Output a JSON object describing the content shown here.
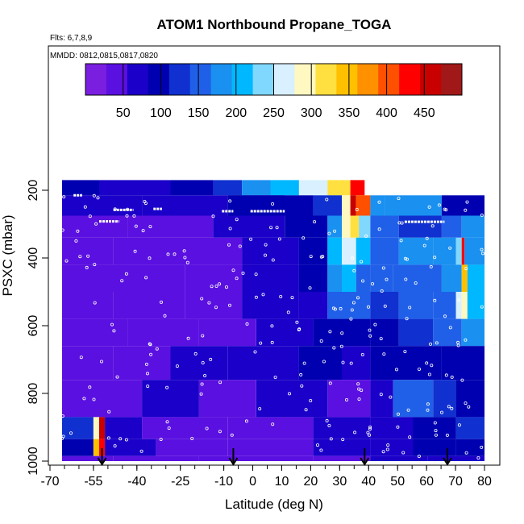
{
  "chart_data": {
    "type": "heatmap",
    "title": "ATOM1 Northbound Propane_TOGA",
    "flights_label": "Flts: 6,7,8,9",
    "dates_label": "MMDD: 0812,0815,0817,0820",
    "xlabel": "Latitude (deg N)",
    "ylabel": "PSXC (mbar)",
    "xlim": [
      -70,
      80
    ],
    "ylim": [
      1000,
      150
    ],
    "y_reversed": true,
    "x_ticks": [
      "-70",
      "-55",
      "-40",
      "-25",
      "-10",
      "0",
      "10",
      "20",
      "30",
      "40",
      "50",
      "60",
      "70",
      "80"
    ],
    "x_tick_values": [
      -70,
      -55,
      -40,
      -25,
      -10,
      0,
      10,
      20,
      30,
      40,
      50,
      60,
      70,
      80
    ],
    "y_ticks": [
      "200",
      "400",
      "600",
      "800",
      "1000"
    ],
    "y_tick_values": [
      200,
      400,
      600,
      800,
      1000
    ],
    "colorbar": {
      "range": [
        0,
        500
      ],
      "tick_labels": [
        "50",
        "100",
        "150",
        "200",
        "250",
        "300",
        "350",
        "400",
        "450"
      ],
      "tick_values": [
        50,
        100,
        150,
        200,
        250,
        300,
        350,
        400,
        450
      ],
      "colors": [
        "#7a1fe0",
        "#5a10e0",
        "#1a00c8",
        "#0000b0",
        "#1030d0",
        "#2060e8",
        "#1a90f0",
        "#00b8ff",
        "#80d8ff",
        "#d8f0ff",
        "#fff8c0",
        "#ffe040",
        "#ffc000",
        "#ff9000",
        "#ff5000",
        "#ff0000",
        "#c80000",
        "#a01818"
      ]
    },
    "bin_layers": [
      {
        "p_range": [
          170,
          215
        ],
        "lat_range": [
          -68,
          33
        ],
        "segments": [
          [
            -68,
            -55,
            100
          ],
          [
            -55,
            -30,
            60
          ],
          [
            -30,
            -15,
            90
          ],
          [
            -15,
            -5,
            130
          ],
          [
            -5,
            5,
            170
          ],
          [
            5,
            15,
            220
          ],
          [
            15,
            25,
            270
          ],
          [
            25,
            33,
            320
          ]
        ]
      },
      {
        "p_range": [
          170,
          215
        ],
        "lat_range": [
          33,
          38
        ],
        "segments": [
          [
            33,
            38,
            440
          ]
        ]
      },
      {
        "p_range": [
          215,
          275
        ],
        "lat_range": [
          -68,
          80
        ],
        "segments": [
          [
            -68,
            -40,
            60
          ],
          [
            -40,
            -10,
            75
          ],
          [
            -10,
            10,
            90
          ],
          [
            -10,
            20,
            110
          ],
          [
            20,
            30,
            130
          ],
          [
            30,
            33,
            300
          ],
          [
            33,
            35,
            460
          ],
          [
            35,
            40,
            400
          ],
          [
            40,
            45,
            170
          ],
          [
            45,
            65,
            170
          ],
          [
            65,
            80,
            100
          ]
        ]
      },
      {
        "p_range": [
          275,
          340
        ],
        "lat_range": [
          -68,
          80
        ],
        "segments": [
          [
            -68,
            -45,
            50
          ],
          [
            -45,
            -15,
            40
          ],
          [
            -15,
            10,
            80
          ],
          [
            10,
            25,
            90
          ],
          [
            25,
            30,
            170
          ],
          [
            30,
            33,
            300
          ],
          [
            33,
            36,
            320
          ],
          [
            36,
            40,
            230
          ],
          [
            40,
            50,
            150
          ],
          [
            50,
            65,
            130
          ],
          [
            65,
            72,
            150
          ],
          [
            72,
            80,
            180
          ]
        ]
      },
      {
        "p_range": [
          340,
          420
        ],
        "lat_range": [
          -68,
          80
        ],
        "segments": [
          [
            -68,
            -50,
            40
          ],
          [
            -50,
            -30,
            50
          ],
          [
            -30,
            -5,
            40
          ],
          [
            -5,
            15,
            60
          ],
          [
            15,
            25,
            90
          ],
          [
            25,
            30,
            200
          ],
          [
            30,
            35,
            260
          ],
          [
            35,
            40,
            200
          ],
          [
            40,
            50,
            150
          ],
          [
            50,
            62,
            170
          ],
          [
            62,
            70,
            170
          ],
          [
            70,
            72,
            240
          ],
          [
            72,
            73,
            420
          ],
          [
            73,
            80,
            190
          ]
        ]
      },
      {
        "p_range": [
          420,
          500
        ],
        "lat_range": [
          -68,
          80
        ],
        "segments": [
          [
            -68,
            -55,
            50
          ],
          [
            -55,
            -25,
            30
          ],
          [
            -25,
            -5,
            45
          ],
          [
            -5,
            15,
            70
          ],
          [
            15,
            25,
            90
          ],
          [
            25,
            30,
            170
          ],
          [
            30,
            35,
            200
          ],
          [
            35,
            40,
            160
          ],
          [
            40,
            48,
            140
          ],
          [
            48,
            65,
            150
          ],
          [
            65,
            72,
            170
          ],
          [
            72,
            74,
            350
          ],
          [
            74,
            80,
            200
          ]
        ]
      },
      {
        "p_range": [
          500,
          580
        ],
        "lat_range": [
          -68,
          80
        ],
        "segments": [
          [
            -68,
            -50,
            40
          ],
          [
            -50,
            -25,
            30
          ],
          [
            -25,
            -5,
            40
          ],
          [
            -5,
            15,
            60
          ],
          [
            15,
            25,
            80
          ],
          [
            25,
            30,
            160
          ],
          [
            30,
            40,
            140
          ],
          [
            40,
            50,
            120
          ],
          [
            50,
            62,
            140
          ],
          [
            62,
            70,
            160
          ],
          [
            70,
            72,
            250
          ],
          [
            72,
            74,
            300
          ],
          [
            74,
            80,
            200
          ]
        ]
      },
      {
        "p_range": [
          580,
          660
        ],
        "lat_range": [
          -68,
          80
        ],
        "segments": [
          [
            -68,
            -45,
            30
          ],
          [
            -45,
            -20,
            40
          ],
          [
            -20,
            0,
            50
          ],
          [
            0,
            20,
            70
          ],
          [
            20,
            30,
            100
          ],
          [
            30,
            40,
            110
          ],
          [
            40,
            50,
            100
          ],
          [
            50,
            62,
            120
          ],
          [
            62,
            72,
            150
          ],
          [
            72,
            80,
            170
          ]
        ]
      },
      {
        "p_range": [
          660,
          760
        ],
        "lat_range": [
          -68,
          80
        ],
        "segments": [
          [
            -68,
            -50,
            40
          ],
          [
            -50,
            -30,
            50
          ],
          [
            -30,
            -10,
            60
          ],
          [
            -10,
            15,
            70
          ],
          [
            15,
            30,
            90
          ],
          [
            30,
            40,
            80
          ],
          [
            40,
            55,
            90
          ],
          [
            55,
            65,
            100
          ],
          [
            65,
            80,
            110
          ]
        ]
      },
      {
        "p_range": [
          760,
          870
        ],
        "lat_range": [
          -68,
          80
        ],
        "segments": [
          [
            -68,
            -55,
            50
          ],
          [
            -55,
            -40,
            40
          ],
          [
            -40,
            -20,
            60
          ],
          [
            -20,
            0,
            50
          ],
          [
            0,
            25,
            60
          ],
          [
            25,
            40,
            50
          ],
          [
            40,
            48,
            80
          ],
          [
            48,
            62,
            150
          ],
          [
            62,
            70,
            120
          ],
          [
            70,
            80,
            100
          ]
        ]
      },
      {
        "p_range": [
          870,
          935
        ],
        "lat_range": [
          -68,
          80
        ],
        "segments": [
          [
            -68,
            -57,
            130
          ],
          [
            -57,
            -55,
            300
          ],
          [
            -55,
            -53,
            470
          ],
          [
            -53,
            -40,
            70
          ],
          [
            -40,
            -10,
            40
          ],
          [
            -10,
            20,
            45
          ],
          [
            20,
            40,
            60
          ],
          [
            40,
            55,
            80
          ],
          [
            55,
            70,
            90
          ],
          [
            70,
            80,
            120
          ]
        ]
      },
      {
        "p_range": [
          935,
          985
        ],
        "lat_range": [
          -68,
          80
        ],
        "segments": [
          [
            -68,
            -57,
            110
          ],
          [
            -57,
            -55,
            350
          ],
          [
            -55,
            -53,
            440
          ],
          [
            -53,
            -35,
            60
          ],
          [
            -35,
            -10,
            40
          ],
          [
            -10,
            20,
            50
          ],
          [
            20,
            40,
            70
          ],
          [
            40,
            55,
            80
          ],
          [
            55,
            70,
            90
          ],
          [
            70,
            80,
            100
          ]
        ]
      },
      {
        "p_range": [
          985,
          1000
        ],
        "lat_range": [
          -68,
          80
        ],
        "segments": [
          [
            -68,
            -50,
            50
          ],
          [
            -50,
            -20,
            40
          ],
          [
            -20,
            20,
            45
          ],
          [
            20,
            40,
            55
          ],
          [
            40,
            60,
            70
          ],
          [
            60,
            80,
            80
          ]
        ]
      }
    ],
    "arrow_latitudes": [
      -54,
      -8,
      38,
      67
    ]
  }
}
